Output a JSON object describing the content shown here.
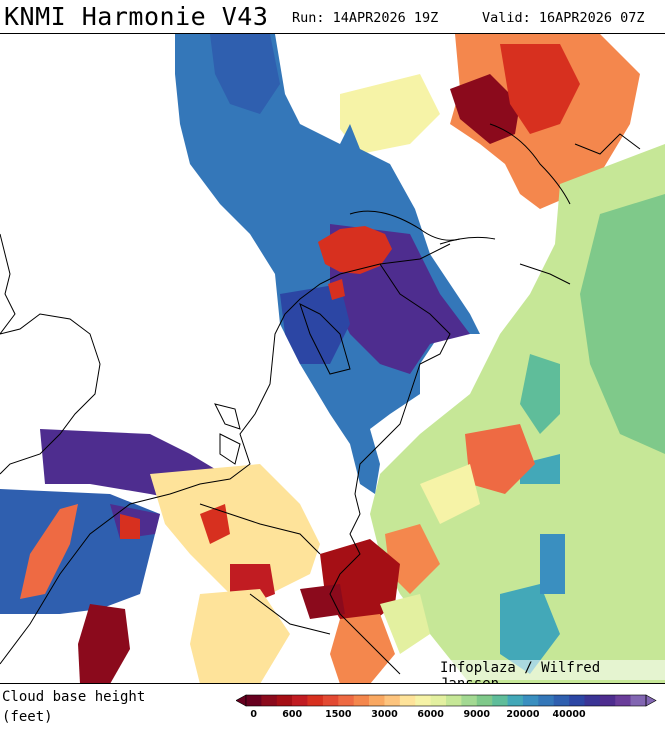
{
  "header": {
    "title": "KNMI Harmonie V43",
    "run": "Run: 14APR2026 19Z",
    "valid": "Valid: 16APR2026 07Z"
  },
  "map": {
    "credit": "Infoplaza / Wilfred Janssen",
    "region": "Netherlands, Belgium, North Sea, NW Germany"
  },
  "legend": {
    "label_line1": "Cloud base height",
    "label_line2": "(feet)",
    "colors": [
      "#67001f",
      "#8b0a1c",
      "#a50f15",
      "#c11c22",
      "#d7301f",
      "#e34a33",
      "#ee6a43",
      "#f4874d",
      "#f9a862",
      "#fdc47e",
      "#fee39a",
      "#f6f3a7",
      "#e3f0a0",
      "#c6e797",
      "#a3d992",
      "#7fc98a",
      "#5fbd9a",
      "#43a8b8",
      "#3a8fc0",
      "#3477b9",
      "#2f5faf",
      "#2c46a4",
      "#3a3495",
      "#4e2d8f",
      "#6a3d9a",
      "#8266b2"
    ],
    "ticks": [
      {
        "label": "0",
        "index": 0
      },
      {
        "label": "600",
        "index": 3
      },
      {
        "label": "1500",
        "index": 6
      },
      {
        "label": "3000",
        "index": 9
      },
      {
        "label": "6000",
        "index": 12
      },
      {
        "label": "9000",
        "index": 15
      },
      {
        "label": "20000",
        "index": 18
      },
      {
        "label": "40000",
        "index": 21
      }
    ]
  }
}
